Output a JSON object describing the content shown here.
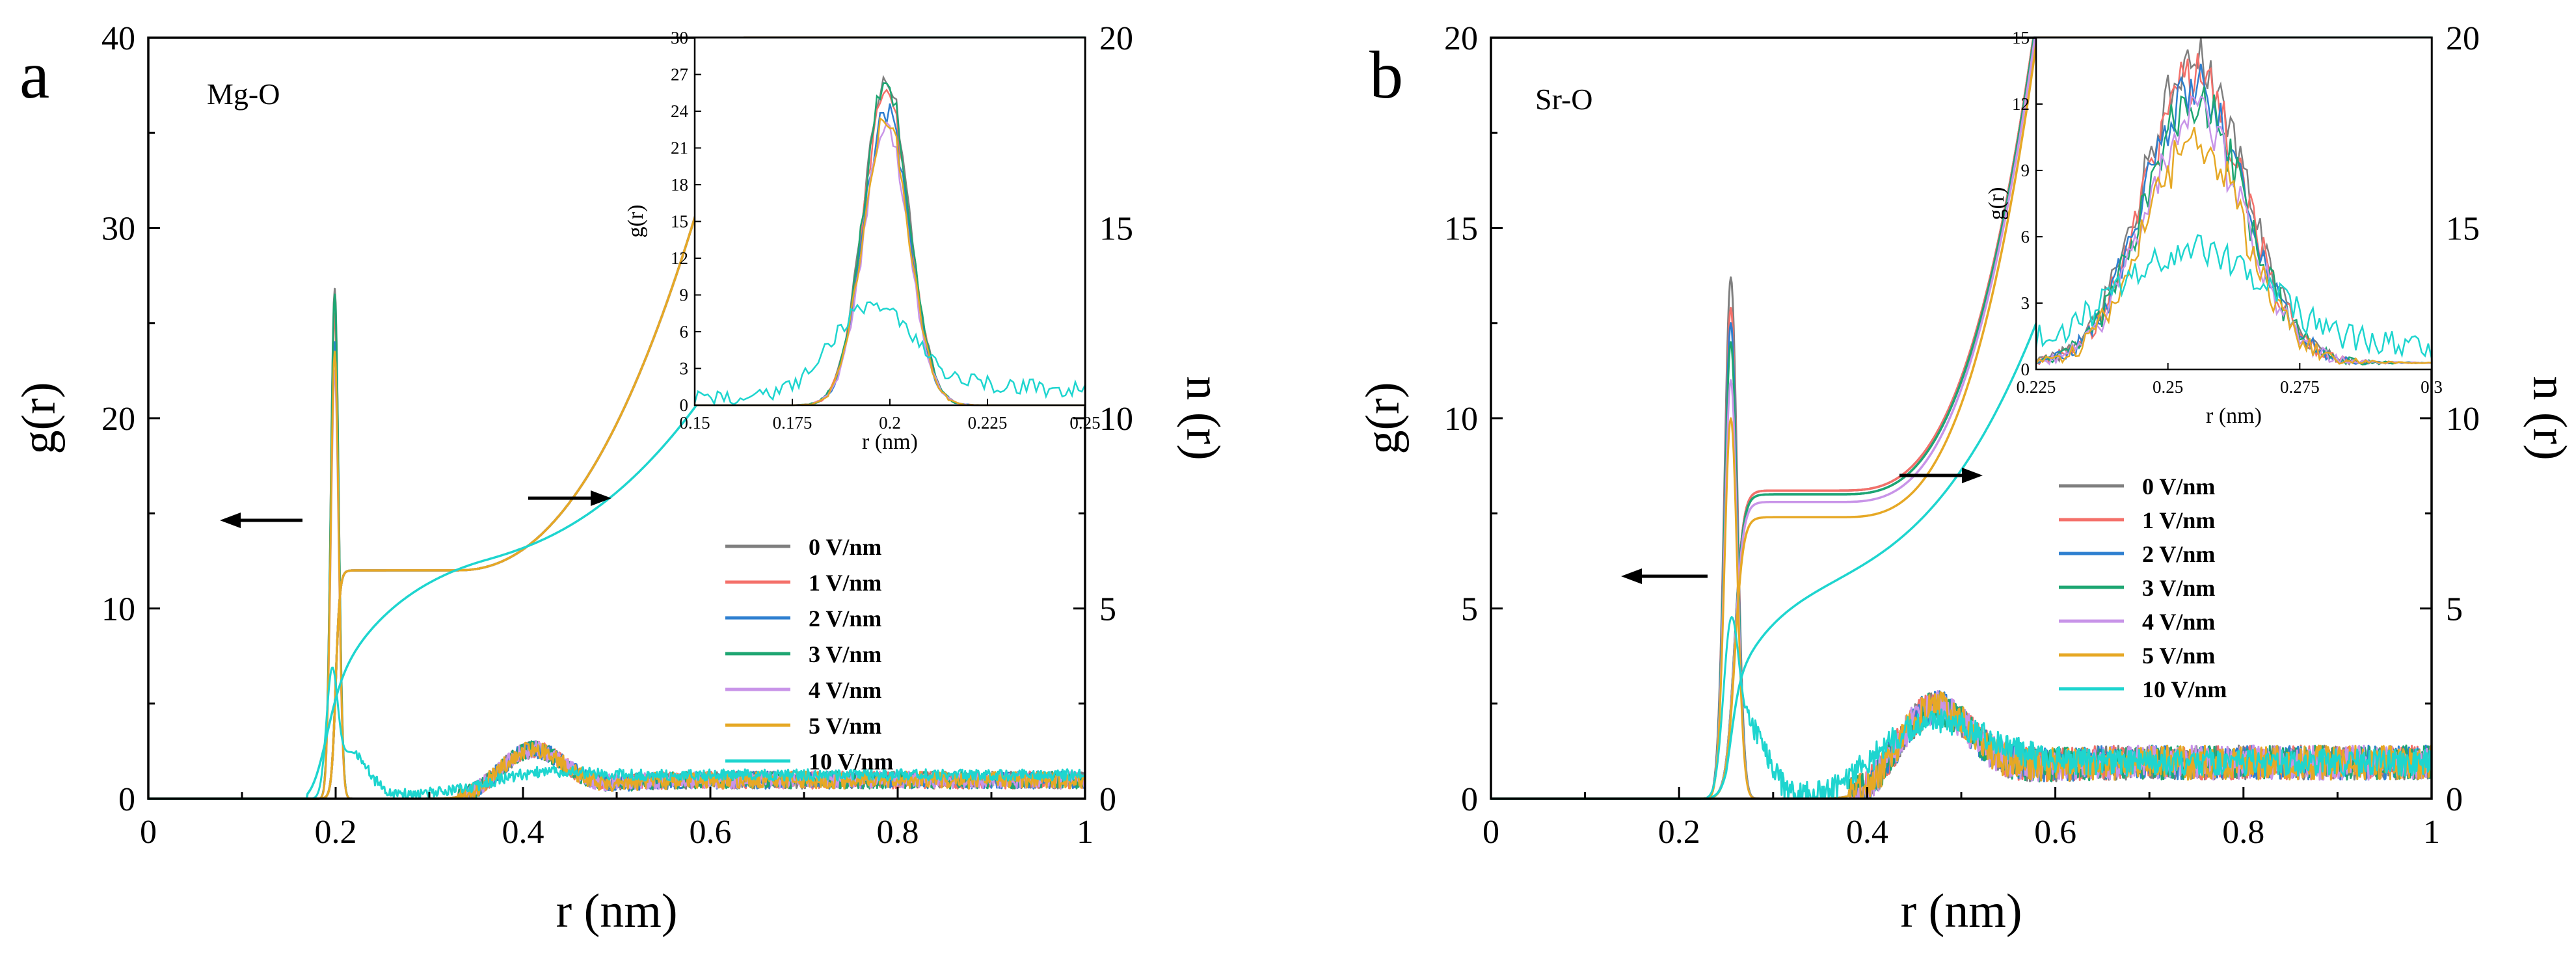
{
  "chart_data": [
    {
      "type": "line",
      "panel_label": "a",
      "pair": "Mg-O",
      "xlabel": "r (nm)",
      "ylabel_left": "g(r)",
      "ylabel_right": "n (r)",
      "xlim": [
        0,
        1
      ],
      "ylim_left": [
        0,
        40
      ],
      "ylim_right": [
        0,
        20
      ],
      "x_ticks": [
        "0",
        "0.2",
        "0.4",
        "0.6",
        "0.8",
        "1"
      ],
      "y_ticks_left": [
        "0",
        "10",
        "20",
        "30",
        "40"
      ],
      "y_ticks_right": [
        "0",
        "5",
        "10",
        "15",
        "20"
      ],
      "gr_peak": {
        "r": 0.199,
        "height": 26.8
      },
      "second_peak": {
        "r": 0.41,
        "height": 2.5
      },
      "coordination_plateau": 6,
      "series": [
        {
          "name": "0 V/nm",
          "color": "#7f7f7f",
          "gr_peak": 26.8,
          "cn_plateau": 6
        },
        {
          "name": "1 V/nm",
          "color": "#f4706a",
          "gr_peak": 25.5,
          "cn_plateau": 6
        },
        {
          "name": "2 V/nm",
          "color": "#2e7fd0",
          "gr_peak": 24.0,
          "cn_plateau": 6
        },
        {
          "name": "3 V/nm",
          "color": "#1ea672",
          "gr_peak": 26.5,
          "cn_plateau": 6
        },
        {
          "name": "4 V/nm",
          "color": "#c894e8",
          "gr_peak": 22.5,
          "cn_plateau": 6
        },
        {
          "name": "5 V/nm",
          "color": "#e6a825",
          "gr_peak": 23.5,
          "cn_plateau": 6
        },
        {
          "name": "10 V/nm",
          "color": "#1ed5cf",
          "gr_peak": 6.5,
          "cn_plateau": null
        }
      ],
      "inset": {
        "xlabel": "r (nm)",
        "ylabel": "g(r)",
        "xlim": [
          0.15,
          0.25
        ],
        "ylim": [
          0,
          30
        ],
        "x_ticks": [
          "0.15",
          "0.175",
          "0.2",
          "0.225",
          "0.25"
        ],
        "y_ticks": [
          "0",
          "3",
          "6",
          "9",
          "12",
          "15",
          "18",
          "21",
          "24",
          "27",
          "30"
        ]
      },
      "annotations": [
        "left arrow points to g(r) axis",
        "right arrow points to n(r) axis"
      ]
    },
    {
      "type": "line",
      "panel_label": "b",
      "pair": "Sr-O",
      "xlabel": "r (nm)",
      "ylabel_left": "g(r)",
      "ylabel_right": "n (r)",
      "xlim": [
        0,
        1
      ],
      "ylim_left": [
        0,
        20
      ],
      "ylim_right": [
        0,
        20
      ],
      "x_ticks": [
        "0",
        "0.2",
        "0.4",
        "0.6",
        "0.8",
        "1"
      ],
      "y_ticks_left": [
        "0",
        "5",
        "10",
        "15",
        "20"
      ],
      "y_ticks_right": [
        "0",
        "5",
        "10",
        "15",
        "20"
      ],
      "gr_peak": {
        "r": 0.255,
        "height": 13.7
      },
      "second_peak": {
        "r": 0.47,
        "height": 2.5
      },
      "coordination_plateau": 8,
      "series": [
        {
          "name": "0 V/nm",
          "color": "#7f7f7f",
          "gr_peak": 13.7,
          "cn_plateau": 8.1
        },
        {
          "name": "1 V/nm",
          "color": "#f4706a",
          "gr_peak": 12.9,
          "cn_plateau": 8.1
        },
        {
          "name": "2 V/nm",
          "color": "#2e7fd0",
          "gr_peak": 12.5,
          "cn_plateau": 8.0
        },
        {
          "name": "3 V/nm",
          "color": "#1ea672",
          "gr_peak": 12.0,
          "cn_plateau": 8.0
        },
        {
          "name": "4 V/nm",
          "color": "#c894e8",
          "gr_peak": 11.0,
          "cn_plateau": 7.8
        },
        {
          "name": "5 V/nm",
          "color": "#e6a825",
          "gr_peak": 10.0,
          "cn_plateau": 7.4
        },
        {
          "name": "10 V/nm",
          "color": "#1ed5cf",
          "gr_peak": 4.5,
          "cn_plateau": null
        }
      ],
      "inset": {
        "xlabel": "r (nm)",
        "ylabel": "g(r)",
        "xlim": [
          0.225,
          0.3
        ],
        "ylim": [
          0,
          15
        ],
        "x_ticks": [
          "0.225",
          "0.25",
          "0.275",
          "0.3"
        ],
        "y_ticks": [
          "0",
          "3",
          "6",
          "9",
          "12",
          "15"
        ]
      },
      "annotations": [
        "left arrow points to g(r) axis",
        "right arrow points to n(r) axis"
      ]
    }
  ]
}
